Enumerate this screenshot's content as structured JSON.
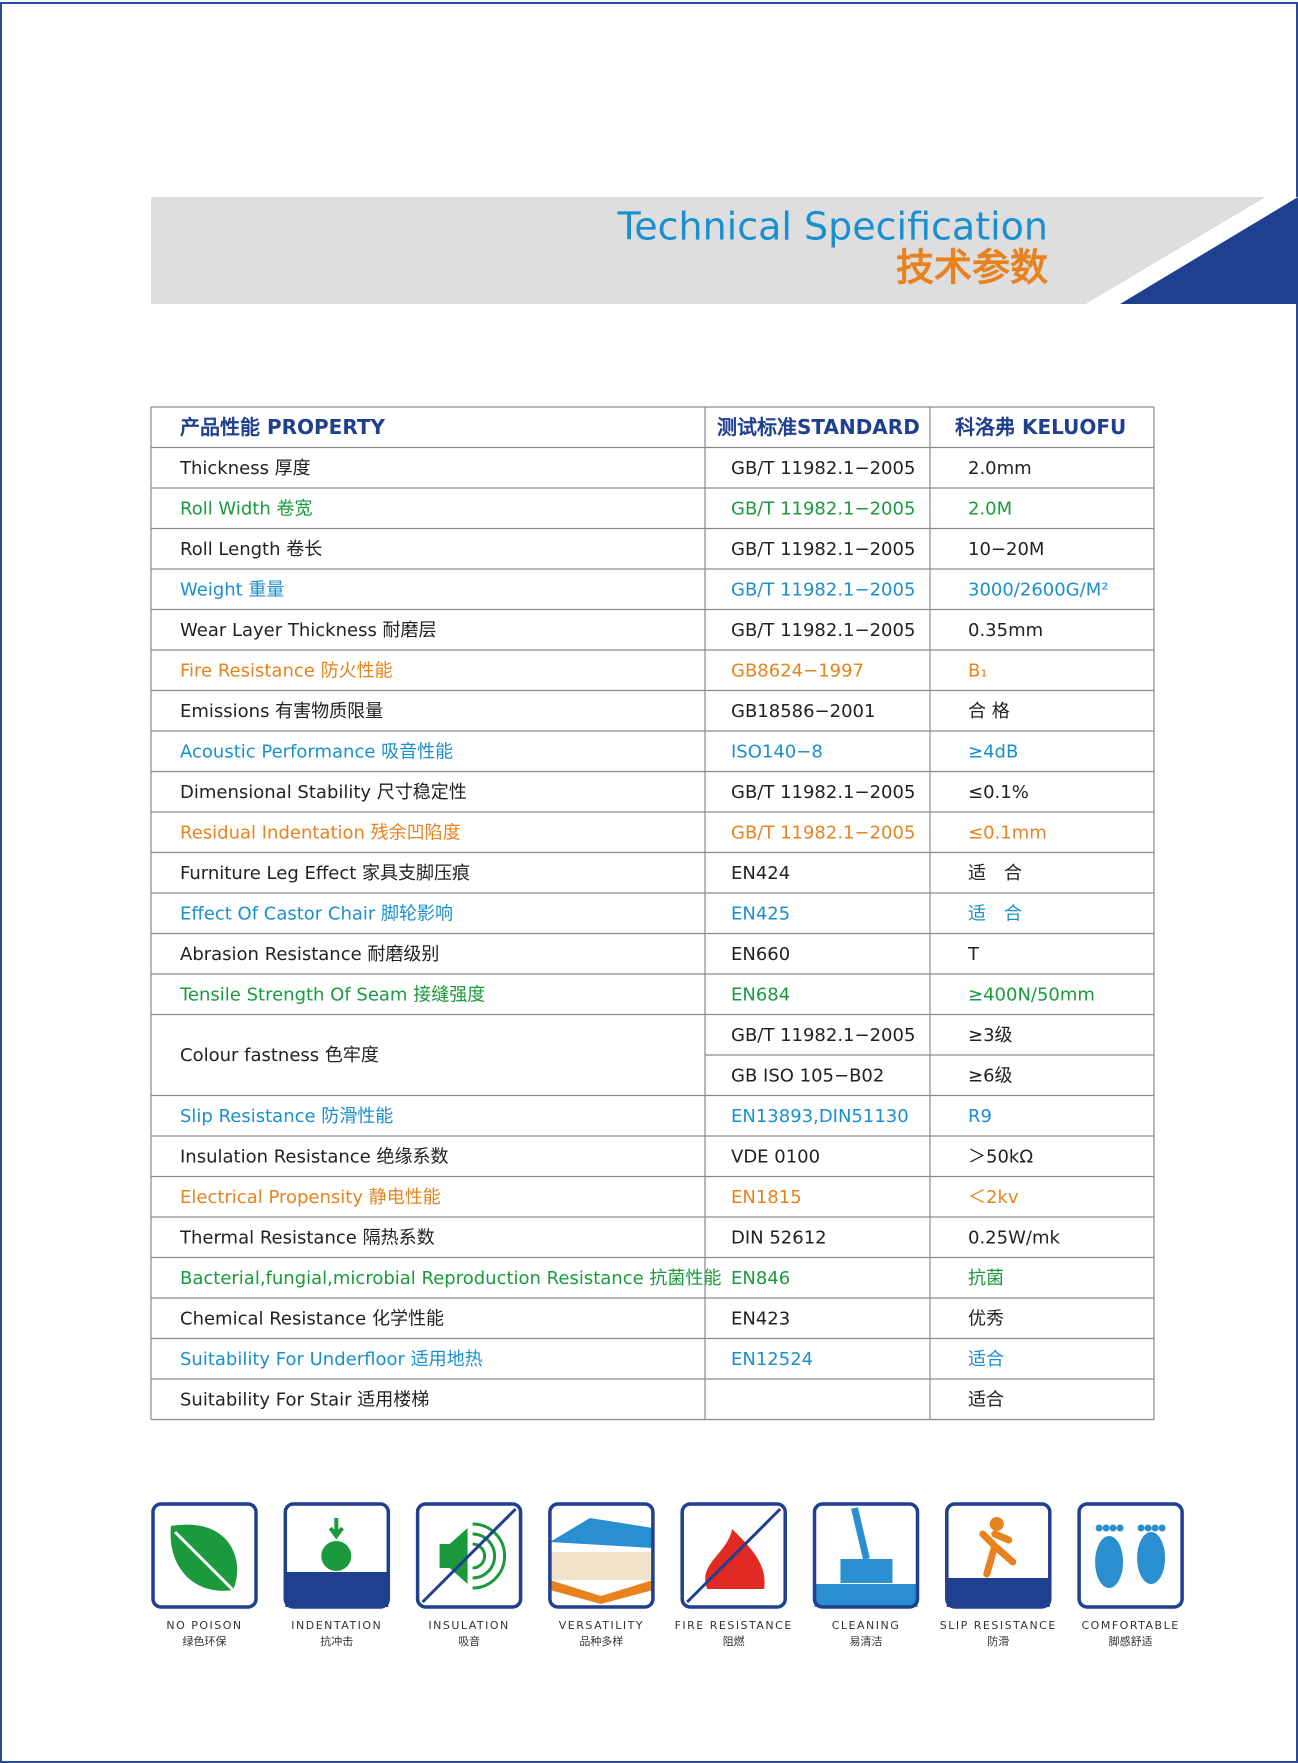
{
  "header": {
    "title": "Technical Specification",
    "subtitle": "技术参数"
  },
  "table": {
    "columns": [
      "产品性能 PROPERTY",
      "测试标准STANDARD",
      "科洛弗 KELUOFU"
    ],
    "rows": [
      {
        "property": "Thickness 厚度",
        "standard": "GB/T 11982.1−2005",
        "value": "2.0mm",
        "color": "#222222"
      },
      {
        "property": "Roll Width 卷宽",
        "standard": "GB/T 11982.1−2005",
        "value": "2.0M",
        "color": "#1a9a3c"
      },
      {
        "property": "Roll Length 卷长",
        "standard": "GB/T 11982.1−2005",
        "value": "10−20M",
        "color": "#222222"
      },
      {
        "property": "Weight 重量",
        "standard": "GB/T 11982.1−2005",
        "value": "3000/2600G/M²",
        "color": "#1a8fd0"
      },
      {
        "property": "Wear Layer Thickness 耐磨层",
        "standard": "GB/T 11982.1−2005",
        "value": "0.35mm",
        "color": "#222222"
      },
      {
        "property": "Fire Resistance 防火性能",
        "standard": "GB8624−1997",
        "value": "B₁",
        "color": "#e8821e"
      },
      {
        "property": "Emissions  有害物质限量",
        "standard": "GB18586−2001",
        "value": "合 格",
        "color": "#222222"
      },
      {
        "property": "Acoustic Performance 吸音性能",
        "standard": "ISO140−8",
        "value": "≥4dB",
        "color": "#1a8fd0"
      },
      {
        "property": "Dimensional Stability 尺寸稳定性",
        "standard": "GB/T 11982.1−2005",
        "value": "≤0.1%",
        "color": "#222222"
      },
      {
        "property": "Residual Indentation 残余凹陷度",
        "standard": "GB/T 11982.1−2005",
        "value": "≤0.1mm",
        "color": "#e8821e"
      },
      {
        "property": "Furniture Leg Effect 家具支脚压痕",
        "standard": "EN424",
        "value": "适　合",
        "color": "#222222"
      },
      {
        "property": "Effect Of Castor Chair 脚轮影响",
        "standard": "EN425",
        "value": "适　合",
        "color": "#1a8fd0"
      },
      {
        "property": "Abrasion Resistance 耐磨级别",
        "standard": "EN660",
        "value": "T",
        "color": "#222222"
      },
      {
        "property": "Tensile Strength Of Seam 接缝强度",
        "standard": "EN684",
        "value": "≥400N/50mm",
        "color": "#1a9a3c"
      },
      {
        "property": "Colour fastness 色牢度",
        "standard": [
          "GB/T 11982.1−2005",
          "GB ISO 105−B02"
        ],
        "value": [
          "≥3级",
          "≥6级"
        ],
        "color": "#222222"
      },
      {
        "property": "Slip Resistance 防滑性能",
        "standard": "EN13893,DIN51130",
        "value": "R9",
        "color": "#1a8fd0"
      },
      {
        "property": "Insulation Resistance 绝缘系数",
        "standard": "VDE 0100",
        "value": "＞50kΩ",
        "color": "#222222"
      },
      {
        "property": "Electrical Propensity 静电性能",
        "standard": "EN1815",
        "value": "＜2kv",
        "color": "#e8821e"
      },
      {
        "property": "Thermal Resistance 隔热系数",
        "standard": "DIN 52612",
        "value": "0.25W/mk",
        "color": "#222222"
      },
      {
        "property": "Bacterial,fungial,microbial Reproduction Resistance 抗菌性能",
        "standard": "EN846",
        "value": "抗菌",
        "color": "#1a9a3c"
      },
      {
        "property": "Chemical Resistance 化学性能",
        "standard": "EN423",
        "value": "优秀",
        "color": "#222222"
      },
      {
        "property": "Suitability For Underfloor 适用地热",
        "standard": "EN12524",
        "value": "适合",
        "color": "#1a8fd0"
      },
      {
        "property": "Suitability For Stair 适用楼梯",
        "standard": "",
        "value": "适合",
        "color": "#222222"
      }
    ]
  },
  "features": [
    {
      "label": "NO POISON",
      "label_cn": "绿色环保"
    },
    {
      "label": "INDENTATION",
      "label_cn": "抗冲击"
    },
    {
      "label": "INSULATION",
      "label_cn": "吸音"
    },
    {
      "label": "VERSATILITY",
      "label_cn": "品种多样"
    },
    {
      "label": "FIRE RESISTANCE",
      "label_cn": "阻燃"
    },
    {
      "label": "CLEANING",
      "label_cn": "易清洁"
    },
    {
      "label": "SLIP RESISTANCE",
      "label_cn": "防滑"
    },
    {
      "label": "COMFORTABLE",
      "label_cn": "脚感舒适"
    }
  ]
}
